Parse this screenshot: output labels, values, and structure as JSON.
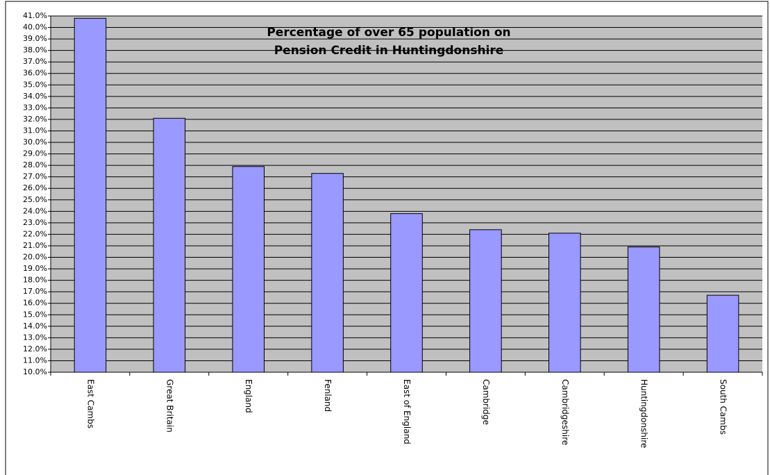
{
  "chart_data": {
    "type": "bar",
    "title": [
      "Percentage of over 65 population on",
      "Pension Credit in Huntingdonshire"
    ],
    "categories": [
      "East Cambs",
      "Great Britain",
      "England",
      "Fenland",
      "East of England",
      "Cambridge",
      "Cambridgeshire",
      "Huntingdonshire",
      "South Cambs"
    ],
    "values": [
      40.8,
      32.1,
      27.9,
      27.3,
      23.8,
      22.4,
      22.1,
      20.9,
      16.7
    ],
    "color": "#9999ff",
    "ylim": [
      10,
      41
    ],
    "yticks": [
      {
        "value": 10,
        "label": "10.0%"
      },
      {
        "value": 11,
        "label": "11.0%"
      },
      {
        "value": 12,
        "label": "12.0%"
      },
      {
        "value": 13,
        "label": "13.0%"
      },
      {
        "value": 14,
        "label": "14.0%"
      },
      {
        "value": 15,
        "label": "15.0%"
      },
      {
        "value": 16,
        "label": "16.0%"
      },
      {
        "value": 17,
        "label": "17.0%"
      },
      {
        "value": 18,
        "label": "18.0%"
      },
      {
        "value": 19,
        "label": "19.0%"
      },
      {
        "value": 20,
        "label": "20.0%"
      },
      {
        "value": 21,
        "label": "21.0%"
      },
      {
        "value": 22,
        "label": "22.0%"
      },
      {
        "value": 23,
        "label": "23.0%"
      },
      {
        "value": 24,
        "label": "24.0%"
      },
      {
        "value": 25,
        "label": "25.0%"
      },
      {
        "value": 26,
        "label": "26.0%"
      },
      {
        "value": 27,
        "label": "27.0%"
      },
      {
        "value": 28,
        "label": "28.0%"
      },
      {
        "value": 29,
        "label": "29.0%"
      },
      {
        "value": 30,
        "label": "30.0%"
      },
      {
        "value": 31,
        "label": "31.0%"
      },
      {
        "value": 32,
        "label": "32.0%"
      },
      {
        "value": 33,
        "label": "33.0%"
      },
      {
        "value": 34,
        "label": "34.0%"
      },
      {
        "value": 35,
        "label": "35.0%"
      },
      {
        "value": 36,
        "label": "36.0%"
      },
      {
        "value": 37,
        "label": "37.0%"
      },
      {
        "value": 38,
        "label": "38.0%"
      },
      {
        "value": 39,
        "label": "39.0%"
      },
      {
        "value": 40,
        "label": "40.0%"
      },
      {
        "value": 41,
        "label": "41.0%"
      }
    ],
    "grid": true
  }
}
